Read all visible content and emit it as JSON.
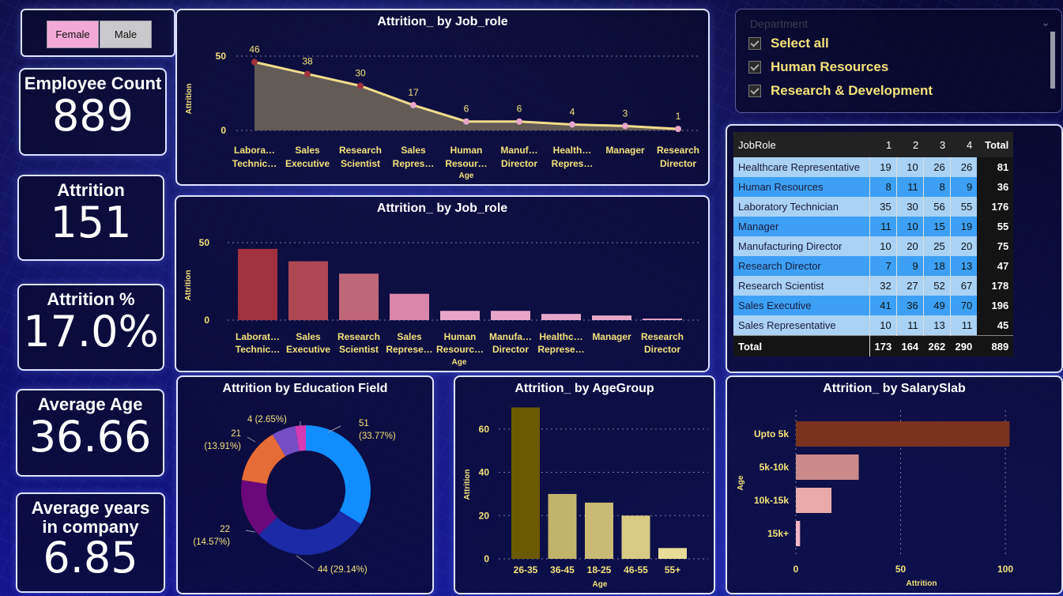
{
  "gender_slicer": {
    "options": [
      "Female",
      "Male"
    ]
  },
  "kpis": {
    "employee_count": {
      "label": "Employee Count",
      "value": "889"
    },
    "attrition": {
      "label": "Attrition",
      "value": "151"
    },
    "attrition_pct": {
      "label": "Attrition %",
      "value": "17.0%"
    },
    "average_age": {
      "label": "Average Age",
      "value": "36.66"
    },
    "avg_years": {
      "label": "Average years in company",
      "value": "6.85"
    }
  },
  "department_slicer": {
    "title": "Department",
    "items": [
      "Select all",
      "Human Resources",
      "Research & Development"
    ]
  },
  "matrix": {
    "headers": [
      "JobRole",
      "1",
      "2",
      "3",
      "4",
      "Total"
    ],
    "rows": [
      [
        "Healthcare Representative",
        "19",
        "10",
        "26",
        "26",
        "81"
      ],
      [
        "Human Resources",
        "8",
        "11",
        "8",
        "9",
        "36"
      ],
      [
        "Laboratory Technician",
        "35",
        "30",
        "56",
        "55",
        "176"
      ],
      [
        "Manager",
        "11",
        "10",
        "15",
        "19",
        "55"
      ],
      [
        "Manufacturing Director",
        "10",
        "20",
        "25",
        "20",
        "75"
      ],
      [
        "Research Director",
        "7",
        "9",
        "18",
        "13",
        "47"
      ],
      [
        "Research Scientist",
        "32",
        "27",
        "52",
        "67",
        "178"
      ],
      [
        "Sales Executive",
        "41",
        "36",
        "49",
        "70",
        "196"
      ],
      [
        "Sales Representative",
        "10",
        "11",
        "13",
        "11",
        "45"
      ]
    ],
    "total": [
      "Total",
      "173",
      "164",
      "262",
      "290",
      "889"
    ]
  },
  "chart_data": [
    {
      "id": "jobrole_area",
      "type": "area",
      "title": "Attrition_ by Job_role",
      "xlabel": "Age",
      "ylabel": "Attrition",
      "categories": [
        [
          "Labora…",
          "Technic…"
        ],
        [
          "Sales",
          "Executive"
        ],
        [
          "Research",
          "Scientist"
        ],
        [
          "Sales",
          "Repres…"
        ],
        [
          "Human",
          "Resour…"
        ],
        [
          "Manuf…",
          "Director"
        ],
        [
          "Health…",
          "Repres…"
        ],
        [
          "Manager"
        ],
        [
          "Research",
          "Director"
        ]
      ],
      "values": [
        46,
        38,
        30,
        17,
        6,
        6,
        4,
        3,
        1
      ],
      "yticks": [
        0,
        50
      ],
      "ylim": [
        0,
        50
      ],
      "colors": {
        "fill": "#6b6459",
        "line": "#f0dc8c",
        "marker": "#e7a6c8"
      }
    },
    {
      "id": "jobrole_bar",
      "type": "bar",
      "title": "Attrition_ by Job_role",
      "xlabel": "Age",
      "ylabel": "Attrition",
      "categories": [
        [
          "Laborat…",
          "Technic…"
        ],
        [
          "Sales",
          "Executive"
        ],
        [
          "Research",
          "Scientist"
        ],
        [
          "Sales",
          "Represe…"
        ],
        [
          "Human",
          "Resourc…"
        ],
        [
          "Manufa…",
          "Director"
        ],
        [
          "Healthc…",
          "Represe…"
        ],
        [
          "Manager"
        ],
        [
          "Research",
          "Director"
        ]
      ],
      "values": [
        46,
        38,
        30,
        17,
        6,
        6,
        4,
        3,
        1
      ],
      "yticks": [
        0,
        50
      ],
      "ylim": [
        0,
        50
      ],
      "colors": [
        "#a1313d",
        "#ae4852",
        "#bf6677",
        "#d986a8",
        "#e7a6c8",
        "#e7a6c8",
        "#e7a6c8",
        "#e7a6c8",
        "#e7a6c8"
      ]
    },
    {
      "id": "edu_donut",
      "type": "pie",
      "title": "Attrition by Education Field",
      "slices": [
        {
          "value": 51,
          "label": [
            "51",
            "(33.77%)"
          ],
          "color": "#118dff"
        },
        {
          "value": 44,
          "label": [
            "44 (29.14%)"
          ],
          "color": "#1b2aa6"
        },
        {
          "value": 22,
          "label": [
            "22",
            "(14.57%)"
          ],
          "color": "#6b087c"
        },
        {
          "value": 21,
          "label": [
            "21",
            "(13.91%)"
          ],
          "color": "#e66c37"
        },
        {
          "value": 9,
          "label": [],
          "color": "#744ec2"
        },
        {
          "value": 4,
          "label": [
            "4 (2.65%)"
          ],
          "color": "#d63ab5"
        }
      ]
    },
    {
      "id": "agegroup_bar",
      "type": "bar",
      "title": "Attrition_ by AgeGroup",
      "xlabel": "Age",
      "ylabel": "Attrition",
      "categories": [
        "26-35",
        "36-45",
        "18-25",
        "46-55",
        "55+"
      ],
      "values": [
        70,
        30,
        26,
        20,
        5
      ],
      "yticks": [
        0,
        20,
        40,
        60
      ],
      "ylim": [
        0,
        72
      ],
      "colors": [
        "#6b5a00",
        "#c2b36b",
        "#c9bb76",
        "#d8ca84",
        "#e7dc98"
      ]
    },
    {
      "id": "salaryslab_bar",
      "type": "bar",
      "orientation": "horizontal",
      "title": "Attrition_ by SalarySlab",
      "xlabel": "Attrition",
      "ylabel": "Age",
      "categories": [
        "Upto 5k",
        "5k-10k",
        "10k-15k",
        "15k+"
      ],
      "values": [
        102,
        30,
        17,
        2
      ],
      "xticks": [
        0,
        50,
        100
      ],
      "xlim": [
        0,
        103
      ],
      "colors": [
        "#7a331f",
        "#cc8b8b",
        "#e8aaaa",
        "#f2b5c4"
      ]
    }
  ]
}
